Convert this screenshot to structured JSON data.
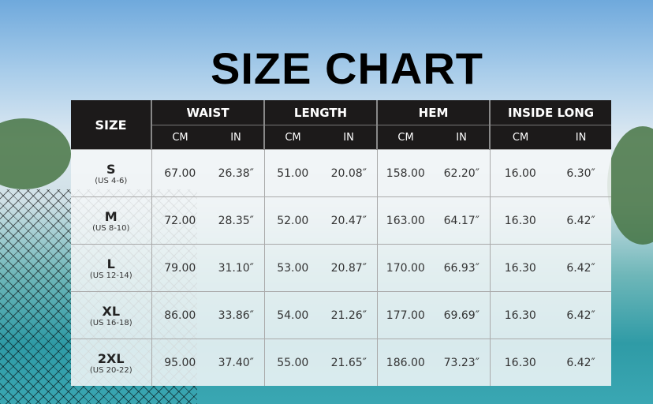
{
  "title": "SIZE CHART",
  "header": {
    "size": "SIZE",
    "groups": [
      "WAIST",
      "LENGTH",
      "HEM",
      "INSIDE LONG"
    ],
    "units": [
      "CM",
      "IN"
    ]
  },
  "rows": [
    {
      "size": "S",
      "us": "(US 4-6)",
      "values": [
        "67.00",
        "26.38″",
        "51.00",
        "20.08″",
        "158.00",
        "62.20″",
        "16.00",
        "6.30″"
      ]
    },
    {
      "size": "M",
      "us": "(US 8-10)",
      "values": [
        "72.00",
        "28.35″",
        "52.00",
        "20.47″",
        "163.00",
        "64.17″",
        "16.30",
        "6.42″"
      ]
    },
    {
      "size": "L",
      "us": "(US 12-14)",
      "values": [
        "79.00",
        "31.10″",
        "53.00",
        "20.87″",
        "170.00",
        "66.93″",
        "16.30",
        "6.42″"
      ]
    },
    {
      "size": "XL",
      "us": "(US 16-18)",
      "values": [
        "86.00",
        "33.86″",
        "54.00",
        "21.26″",
        "177.00",
        "69.69″",
        "16.30",
        "6.42″"
      ]
    },
    {
      "size": "2XL",
      "us": "(US 20-22)",
      "values": [
        "95.00",
        "37.40″",
        "55.00",
        "21.65″",
        "186.00",
        "73.23″",
        "16.30",
        "6.42″"
      ]
    }
  ],
  "colors": {
    "header_bg": "#1c1a1a",
    "header_text": "#ffffff"
  }
}
